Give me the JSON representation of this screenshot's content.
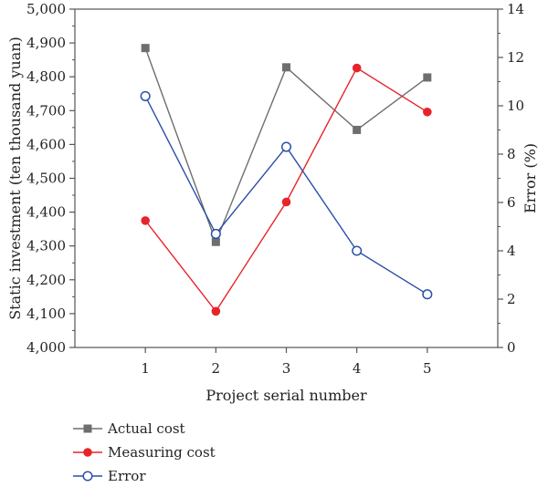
{
  "chart_data": {
    "type": "line",
    "categories": [
      "1",
      "2",
      "3",
      "4",
      "5"
    ],
    "xlabel": "Project serial number",
    "ylabel_left": "Static investment (ten thousand yuan)",
    "ylabel_right": "Error (%)",
    "ylim_left": [
      4000,
      5000
    ],
    "ylim_right": [
      0,
      14
    ],
    "yticks_left": [
      "4,000",
      "4,100",
      "4,200",
      "4,300",
      "4,400",
      "4,500",
      "4,600",
      "4,700",
      "4,800",
      "4,900",
      "5,000"
    ],
    "yticks_right": [
      "0",
      "2",
      "4",
      "6",
      "8",
      "10",
      "12",
      "14"
    ],
    "grid": false,
    "legend_position": "bottom-left",
    "series": [
      {
        "name": "Actual cost",
        "axis": "left",
        "marker": "square",
        "color": "#6e6e6e",
        "values": [
          4885,
          4312,
          4828,
          4643,
          4798
        ]
      },
      {
        "name": "Measuring cost",
        "axis": "left",
        "marker": "filled-circle",
        "color": "#e8242b",
        "values": [
          4375,
          4107,
          4430,
          4826,
          4696
        ]
      },
      {
        "name": "Error",
        "axis": "right",
        "marker": "open-circle",
        "color": "#2b4fa8",
        "values": [
          10.4,
          4.7,
          8.3,
          4.0,
          2.2
        ]
      }
    ]
  }
}
